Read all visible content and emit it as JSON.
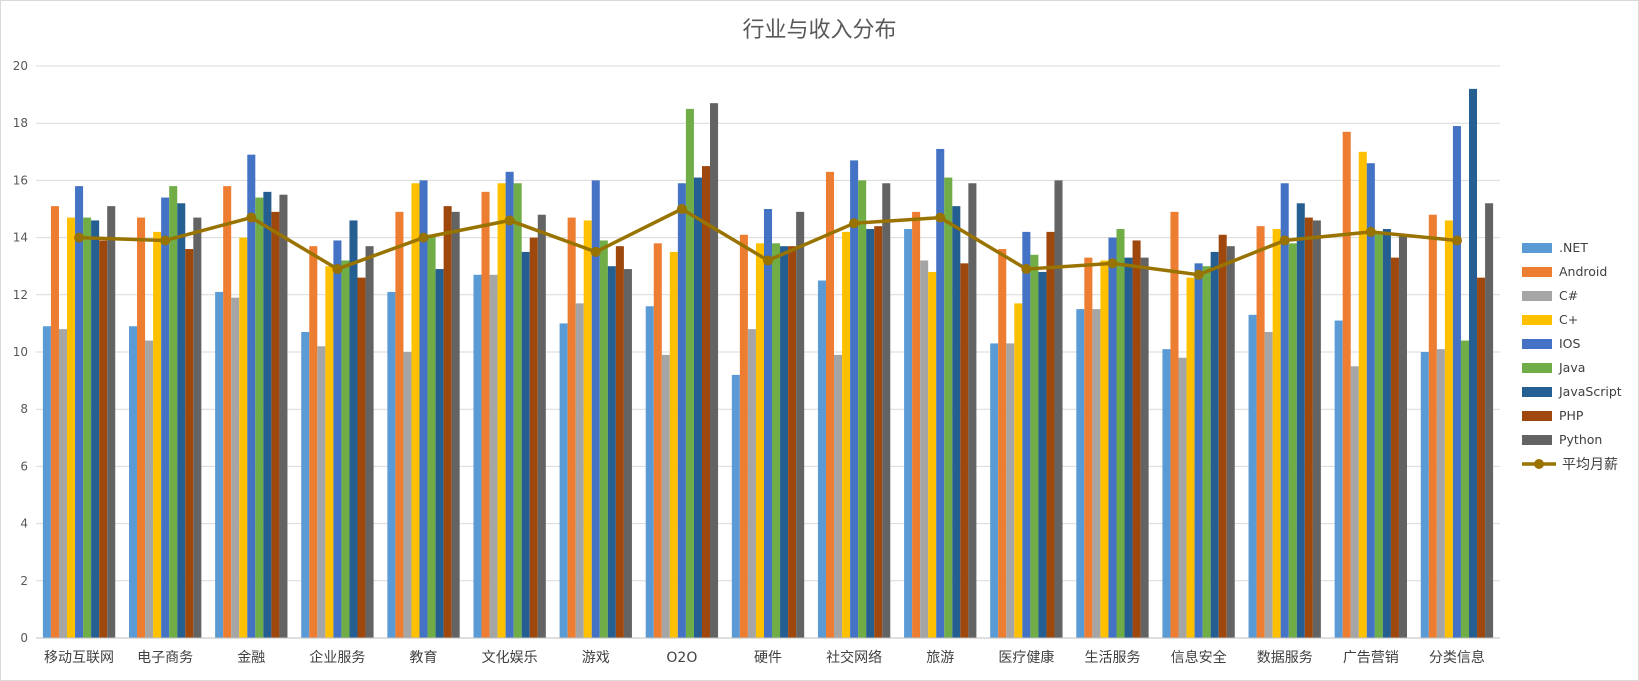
{
  "chart_data": {
    "type": "bar",
    "title": "行业与收入分布",
    "ylim": [
      0,
      20
    ],
    "yticks": [
      0,
      2,
      4,
      6,
      8,
      10,
      12,
      14,
      16,
      18,
      20
    ],
    "grid": true,
    "legend_position": "right",
    "categories": [
      "移动互联网",
      "电子商务",
      "金融",
      "企业服务",
      "教育",
      "文化娱乐",
      "游戏",
      "O2O",
      "硬件",
      "社交网络",
      "旅游",
      "医疗健康",
      "生活服务",
      "信息安全",
      "数据服务",
      "广告营销",
      "分类信息"
    ],
    "series": [
      {
        "name": ".NET",
        "color": "#5B9BD5",
        "values": [
          10.9,
          10.9,
          12.1,
          10.7,
          12.1,
          12.7,
          11.0,
          11.6,
          9.2,
          12.5,
          14.3,
          10.3,
          11.5,
          10.1,
          11.3,
          11.1,
          10.0
        ]
      },
      {
        "name": "Android",
        "color": "#ED7D31",
        "values": [
          15.1,
          14.7,
          15.8,
          13.7,
          14.9,
          15.6,
          14.7,
          13.8,
          14.1,
          16.3,
          14.9,
          13.6,
          13.3,
          14.9,
          14.4,
          17.7,
          14.8
        ]
      },
      {
        "name": "C#",
        "color": "#A5A5A5",
        "values": [
          10.8,
          10.4,
          11.9,
          10.2,
          10.0,
          12.7,
          11.7,
          9.9,
          10.8,
          9.9,
          13.2,
          10.3,
          11.5,
          9.8,
          10.7,
          9.5,
          10.1
        ]
      },
      {
        "name": "C+",
        "color": "#FFC000",
        "values": [
          14.7,
          14.2,
          14.0,
          13.0,
          15.9,
          15.9,
          14.6,
          13.5,
          13.8,
          14.2,
          12.8,
          11.7,
          13.2,
          12.6,
          14.3,
          17.0,
          14.6
        ]
      },
      {
        "name": "IOS",
        "color": "#4472C4",
        "values": [
          15.8,
          15.4,
          16.9,
          13.9,
          16.0,
          16.3,
          16.0,
          15.9,
          15.0,
          16.7,
          17.1,
          14.2,
          14.0,
          13.1,
          15.9,
          16.6,
          17.9
        ]
      },
      {
        "name": "Java",
        "color": "#70AD47",
        "values": [
          14.7,
          15.8,
          15.4,
          13.2,
          14.1,
          15.9,
          13.9,
          18.5,
          13.8,
          16.0,
          16.1,
          13.4,
          14.3,
          13.0,
          13.8,
          14.2,
          10.4
        ]
      },
      {
        "name": "JavaScript",
        "color": "#255E91",
        "values": [
          14.6,
          15.2,
          15.6,
          14.6,
          12.9,
          13.5,
          13.0,
          16.1,
          13.7,
          14.3,
          15.1,
          12.8,
          13.3,
          13.5,
          15.2,
          14.3,
          19.2
        ]
      },
      {
        "name": "PHP",
        "color": "#9E480E",
        "values": [
          13.9,
          13.6,
          14.9,
          12.6,
          15.1,
          14.0,
          13.7,
          16.5,
          13.7,
          14.4,
          13.1,
          14.2,
          13.9,
          14.1,
          14.7,
          13.3,
          12.6
        ]
      },
      {
        "name": "Python",
        "color": "#636363",
        "values": [
          15.1,
          14.7,
          15.5,
          13.7,
          14.9,
          14.8,
          12.9,
          18.7,
          14.9,
          15.9,
          15.9,
          16.0,
          13.3,
          13.7,
          14.6,
          14.1,
          15.2
        ]
      }
    ],
    "line_series": {
      "name": "平均月薪",
      "color": "#997300",
      "values": [
        14.0,
        13.9,
        14.7,
        12.9,
        14.0,
        14.6,
        13.5,
        15.0,
        13.2,
        14.5,
        14.7,
        12.9,
        13.1,
        12.7,
        13.9,
        14.2,
        13.9
      ]
    }
  }
}
